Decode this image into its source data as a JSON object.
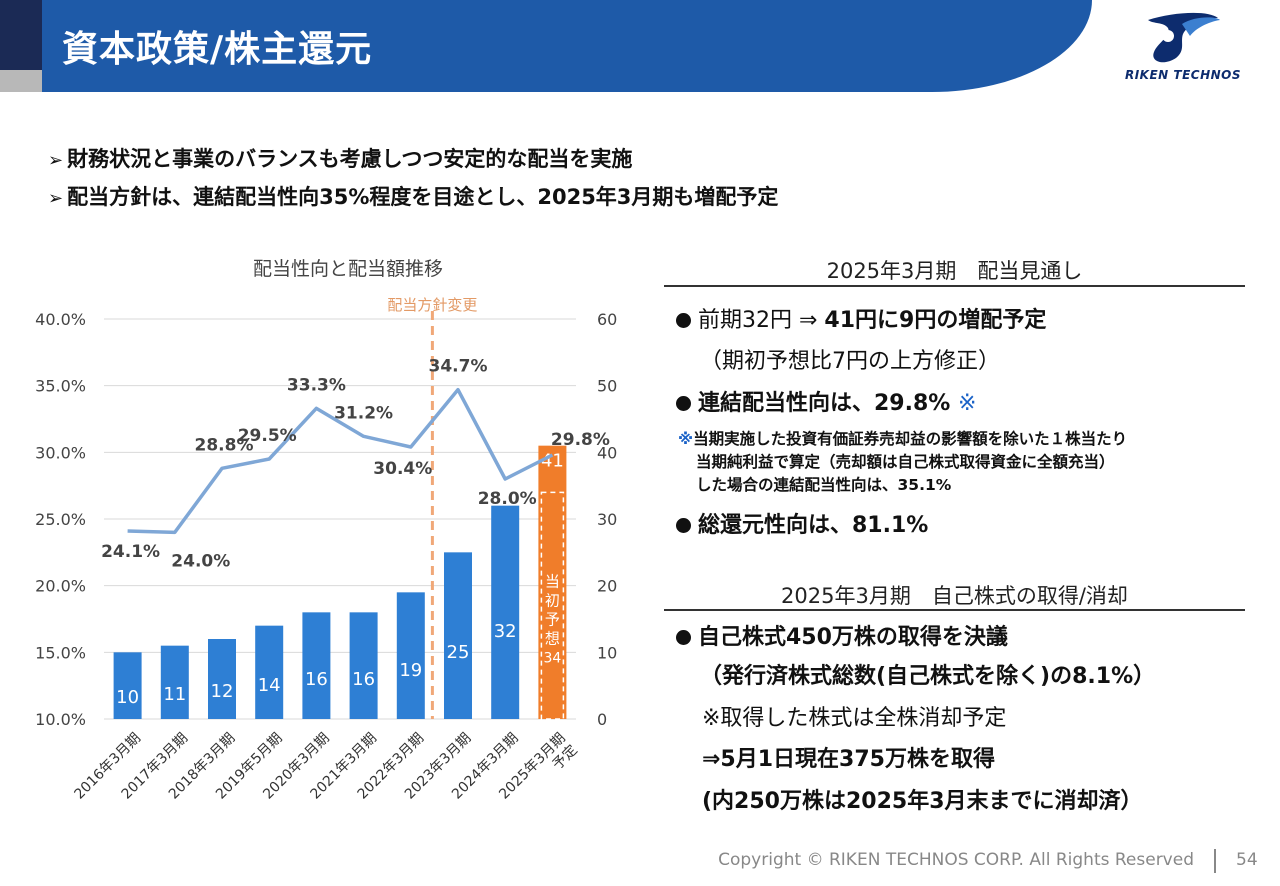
{
  "header": {
    "title": "資本政策/株主還元",
    "logo_text": "RIKEN TECHNOS"
  },
  "bullets": [
    "財務状況と事業のバランスも考慮しつつ安定的な配当を実施",
    "配当方針は、連結配当性向35%程度を目途とし、2025年3月期も増配予定"
  ],
  "bullet_marker": "➢",
  "chart_data": {
    "type": "bar",
    "title": "配当性向と配当額推移",
    "categories": [
      "2016年3月期",
      "2017年3月期",
      "2018年3月期",
      "2019年5月期",
      "2020年3月期",
      "2021年3月期",
      "2022年3月期",
      "2023年3月期",
      "2024年3月期",
      "2025年3月期\n予定"
    ],
    "series": [
      {
        "kind": "bar",
        "axis": "right",
        "values": [
          10,
          11,
          12,
          14,
          16,
          16,
          19,
          25,
          32,
          41
        ],
        "labels": [
          "10",
          "11",
          "12",
          "14",
          "16",
          "16",
          "19",
          "25",
          "32",
          "41"
        ]
      },
      {
        "kind": "line",
        "axis": "left",
        "values": [
          24.1,
          24.0,
          28.8,
          29.5,
          33.3,
          31.2,
          30.4,
          34.7,
          28.0,
          29.8
        ],
        "labels": [
          "24.1%",
          "24.0%",
          "28.8%",
          "29.5%",
          "33.3%",
          "31.2%",
          "30.4%",
          "34.7%",
          "28.0%",
          "29.8%"
        ]
      }
    ],
    "initial_forecast": {
      "label": "当初予想",
      "value": 34
    },
    "policy_change_label": "配当方針変更",
    "y_left": {
      "min": 10,
      "max": 40,
      "ticks": [
        "10.0%",
        "15.0%",
        "20.0%",
        "25.0%",
        "30.0%",
        "35.0%",
        "40.0%"
      ]
    },
    "y_right": {
      "min": 0,
      "max": 60,
      "ticks": [
        "0",
        "10",
        "20",
        "30",
        "40",
        "50",
        "60"
      ]
    },
    "grid": true,
    "colors": {
      "bar": "#2e7fd4",
      "bar_forecast": "#f07d2a",
      "line": "#7fa7d6",
      "policy_line": "#f0a878"
    }
  },
  "outlook": {
    "title": "2025年3月期　配当見通し",
    "line1_pre": "前期32円 ⇒ ",
    "line1_bold": "41円に9円の増配予定",
    "line2": "（期初予想比7円の上方修正）",
    "line3": "連結配当性向は、29.8% ",
    "line3_mark": "※",
    "note_mark": "※",
    "note1": "当期実施した投資有価証券売却益の影響額を除いた１株当たり",
    "note2": "当期純利益で算定（売却額は自己株式取得資金に全額充当）",
    "note3": "した場合の連結配当性向は、35.1%",
    "line4": "総還元性向は、81.1%"
  },
  "buyback": {
    "title": "2025年3月期　自己株式の取得/消却",
    "line1": "自己株式450万株の取得を決議",
    "line2": "（発行済株式総数(自己株式を除く)の8.1%）",
    "line3": "※取得した株式は全株消却予定",
    "line4": "⇒5月1日現在375万株を取得",
    "line5": "(内250万株は2025年3月末までに消却済）"
  },
  "footer": {
    "copyright": "Copyright © RIKEN TECHNOS CORP. All Rights Reserved",
    "page": "54"
  }
}
